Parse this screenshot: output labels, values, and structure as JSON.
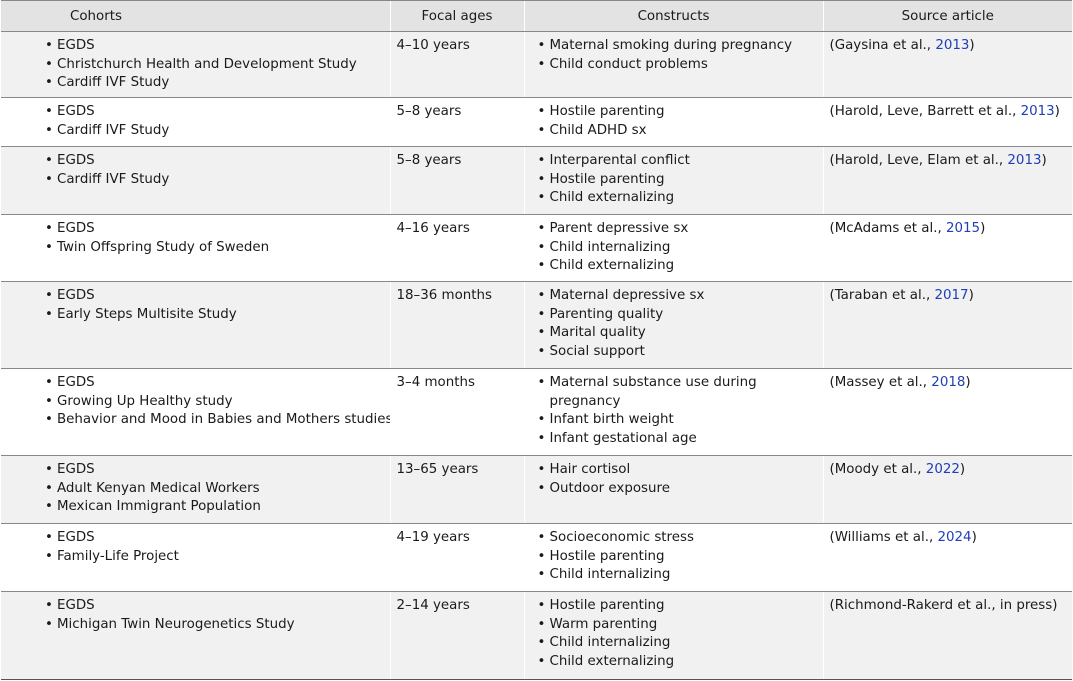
{
  "headers": {
    "cohorts": "Cohorts",
    "focal_ages": "Focal ages",
    "constructs": "Constructs",
    "source": "Source article"
  },
  "rows": [
    {
      "cohorts": [
        "EGDS",
        "Christchurch Health and Development Study",
        "Cardiff IVF Study"
      ],
      "ages": "4–10 years",
      "constructs": [
        "Maternal smoking during pregnancy",
        "Child conduct problems"
      ],
      "source_pre": "(Gaysina et al., ",
      "source_year": "2013",
      "source_post": ")"
    },
    {
      "cohorts": [
        "EGDS",
        "Cardiff IVF Study"
      ],
      "ages": "5–8 years",
      "constructs": [
        "Hostile parenting",
        "Child ADHD sx"
      ],
      "source_pre": "(Harold, Leve, Barrett et al., ",
      "source_year": "2013",
      "source_post": ")"
    },
    {
      "cohorts": [
        "EGDS",
        "Cardiff IVF Study"
      ],
      "ages": "5–8 years",
      "constructs": [
        "Interparental conflict",
        "Hostile parenting",
        "Child externalizing"
      ],
      "source_pre": "(Harold, Leve, Elam et al., ",
      "source_year": "2013",
      "source_post": ")"
    },
    {
      "cohorts": [
        "EGDS",
        "Twin Offspring Study of Sweden"
      ],
      "ages": "4–16 years",
      "constructs": [
        "Parent depressive sx",
        "Child internalizing",
        "Child externalizing"
      ],
      "source_pre": "(McAdams et al., ",
      "source_year": "2015",
      "source_post": ")"
    },
    {
      "cohorts": [
        "EGDS",
        "Early Steps Multisite Study"
      ],
      "ages": "18–36 months",
      "constructs": [
        "Maternal depressive sx",
        "Parenting quality",
        "Marital quality",
        "Social support"
      ],
      "source_pre": "(Taraban et al., ",
      "source_year": "2017",
      "source_post": ")"
    },
    {
      "cohorts": [
        "EGDS",
        "Growing Up Healthy study",
        "Behavior and Mood in Babies and Mothers studies"
      ],
      "ages": "3–4 months",
      "constructs": [
        "Maternal substance use during\npregnancy",
        "Infant birth weight",
        "Infant gestational age"
      ],
      "source_pre": "(Massey et al., ",
      "source_year": "2018",
      "source_post": ")"
    },
    {
      "cohorts": [
        "EGDS",
        "Adult Kenyan Medical Workers",
        "Mexican Immigrant Population"
      ],
      "ages": "13–65 years",
      "constructs": [
        "Hair cortisol",
        "Outdoor exposure"
      ],
      "source_pre": "(Moody et al., ",
      "source_year": "2022",
      "source_post": ")"
    },
    {
      "cohorts": [
        "EGDS",
        "Family-Life Project"
      ],
      "ages": "4–19 years",
      "constructs": [
        "Socioeconomic stress",
        "Hostile parenting",
        "Child internalizing"
      ],
      "source_pre": "(Williams et al., ",
      "source_year": "2024",
      "source_post": ")"
    },
    {
      "cohorts": [
        "EGDS",
        "Michigan Twin Neurogenetics Study"
      ],
      "ages": "2–14 years",
      "constructs": [
        "Hostile parenting",
        "Warm parenting",
        "Child internalizing",
        "Child externalizing"
      ],
      "source_pre": "(Richmond-Rakerd et al., in press)",
      "source_year": "",
      "source_post": ""
    }
  ]
}
